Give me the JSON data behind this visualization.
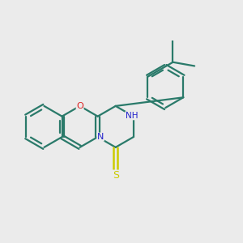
{
  "background_color": "#ebebeb",
  "bond_color": "#2a7a6a",
  "atom_colors": {
    "O": "#dd2222",
    "N": "#2222cc",
    "S": "#cccc00",
    "C": "#2a7a6a"
  },
  "line_width": 1.6,
  "fig_size": [
    3.0,
    3.0
  ],
  "dpi": 100
}
